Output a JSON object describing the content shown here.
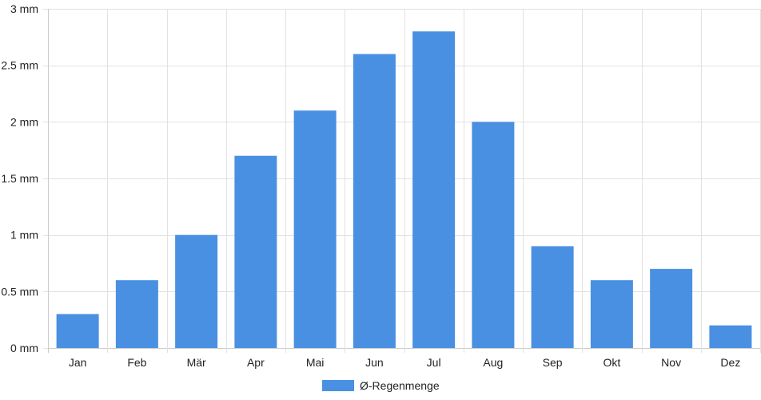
{
  "chart_data": {
    "type": "bar",
    "title": "",
    "xlabel": "",
    "ylabel": "",
    "categories": [
      "Jan",
      "Feb",
      "Mär",
      "Apr",
      "Mai",
      "Jun",
      "Jul",
      "Aug",
      "Sep",
      "Okt",
      "Nov",
      "Dez"
    ],
    "series": [
      {
        "name": "Ø-Regenmenge",
        "values": [
          0.3,
          0.6,
          1.0,
          1.7,
          2.1,
          2.6,
          2.8,
          2.0,
          0.9,
          0.6,
          0.7,
          0.2
        ],
        "color": "#4a90e2"
      }
    ],
    "ylim": [
      0,
      3
    ],
    "y_ticks": [
      0,
      0.5,
      1,
      1.5,
      2,
      2.5,
      3
    ],
    "y_tick_labels": [
      "0 mm",
      "0.5 mm",
      "1 mm",
      "1.5 mm",
      "2 mm",
      "2.5 mm",
      "3 mm"
    ],
    "grid": true,
    "legend_position": "bottom-center",
    "colors": {
      "bar": "#4a90e2",
      "grid": "#e2e2e2",
      "axis": "#cccccc",
      "text": "#222222"
    }
  }
}
